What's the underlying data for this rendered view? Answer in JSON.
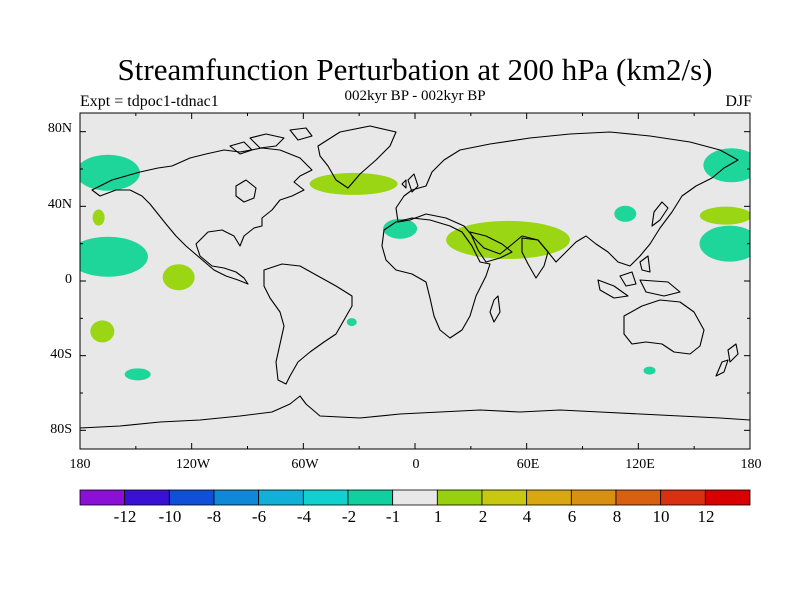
{
  "title": "Streamfunction Perturbation at 200 hPa (km2/s)",
  "subtitle": "002kyr BP - 002kyr BP",
  "left_label": "Expt = tdpoc1-tdnac1",
  "season": "DJF",
  "y_ticks": [
    "80N",
    "40N",
    "0",
    "40S",
    "80S"
  ],
  "x_ticks": [
    "180",
    "120W",
    "60W",
    "0",
    "60E",
    "120E",
    "180"
  ],
  "colors": {
    "background_field": "#e8e8e8",
    "negative_contour": "#1fd69a",
    "positive_contour": "#9ad613"
  },
  "colorbar": {
    "colors": [
      "#8a10d8",
      "#3a10d4",
      "#1050d8",
      "#1088d8",
      "#10b0d8",
      "#10d0d0",
      "#10d0a0",
      "#e8e8e8",
      "#98d010",
      "#c8c810",
      "#d8a810",
      "#d89010",
      "#d86010",
      "#d83010",
      "#d80000"
    ],
    "labels": [
      "-12",
      "-10",
      "-8",
      "-6",
      "-4",
      "-2",
      "-1",
      "1",
      "2",
      "4",
      "6",
      "8",
      "10",
      "12"
    ]
  },
  "chart_data": {
    "type": "map-contour",
    "variable": "Streamfunction Perturbation at 200 hPa",
    "units": "km2/s",
    "season": "DJF",
    "experiment": "tdpoc1-tdnac1",
    "period": "002kyr BP - 002kyr BP",
    "lon_range": [
      -180,
      180
    ],
    "lat_range": [
      -90,
      90
    ],
    "regions": [
      {
        "level": "-2",
        "lon": -165,
        "lat": 58
      },
      {
        "level": "-2",
        "lon": -165,
        "lat": 13
      },
      {
        "level": "1",
        "lon": -170,
        "lat": 34
      },
      {
        "level": "1",
        "lon": -127,
        "lat": 2
      },
      {
        "level": "1",
        "lon": -168,
        "lat": -27
      },
      {
        "level": "-2",
        "lon": -149,
        "lat": -50
      },
      {
        "level": "1",
        "lon": -33,
        "lat": 52
      },
      {
        "level": "-2",
        "lon": -8,
        "lat": 28
      },
      {
        "level": "1",
        "lon": 50,
        "lat": 22
      },
      {
        "level": "-2",
        "lon": -34,
        "lat": -22
      },
      {
        "level": "-2",
        "lon": 113,
        "lat": 36
      },
      {
        "level": "1",
        "lon": 167,
        "lat": 35
      },
      {
        "level": "-2",
        "lon": 170,
        "lat": 62
      },
      {
        "level": "-2",
        "lon": 169,
        "lat": 20
      },
      {
        "level": "-2",
        "lon": 126,
        "lat": -48
      }
    ]
  }
}
